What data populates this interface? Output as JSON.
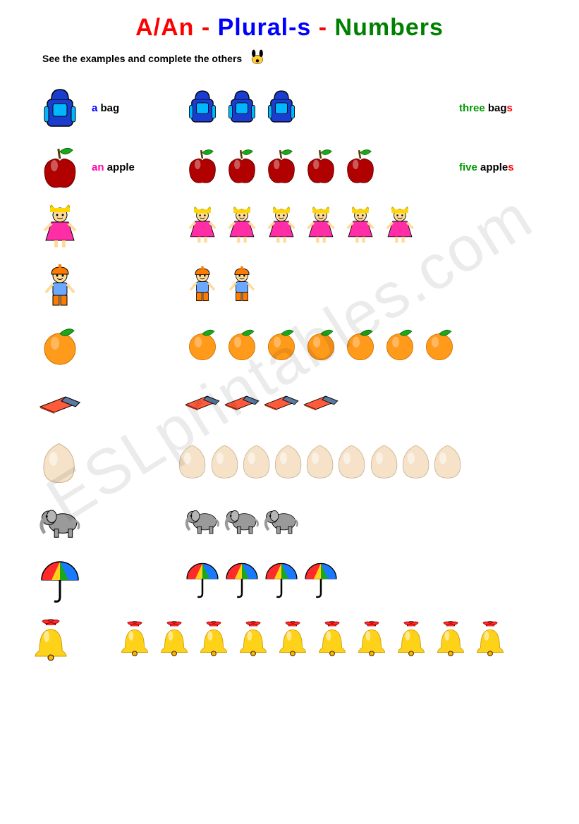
{
  "title": {
    "part1": "A/An",
    "sep": " - ",
    "part2": "Plural-s",
    "part3": "Numbers"
  },
  "subtitle": "See the examples and complete the others",
  "watermark": "ESLprintables.com",
  "rows": [
    {
      "icon": "bag",
      "single_article": "a",
      "single_article_color": "#0000ff",
      "single_noun": "bag",
      "count": 3,
      "answer_number": "three",
      "answer_number_color": "#009900",
      "answer_noun": "bag",
      "answer_suffix": "s",
      "answer_suffix_color": "#ff0000",
      "show_answer": true
    },
    {
      "icon": "apple",
      "single_article": "an",
      "single_article_color": "#ff00aa",
      "single_noun": "apple",
      "count": 5,
      "answer_number": "five",
      "answer_number_color": "#009900",
      "answer_noun": "apple",
      "answer_suffix": "s",
      "answer_suffix_color": "#ff0000",
      "show_answer": true
    },
    {
      "icon": "girl",
      "count": 6,
      "show_answer": false
    },
    {
      "icon": "boy",
      "count": 2,
      "show_answer": false
    },
    {
      "icon": "orange",
      "count": 7,
      "show_answer": false
    },
    {
      "icon": "eraser",
      "count": 4,
      "show_answer": false
    },
    {
      "icon": "egg",
      "count": 9,
      "show_answer": false
    },
    {
      "icon": "elephant",
      "count": 3,
      "show_answer": false
    },
    {
      "icon": "umbrella",
      "count": 4,
      "show_answer": false
    },
    {
      "icon": "bell",
      "count": 10,
      "show_answer": false
    }
  ],
  "icon_sizes": {
    "single": 64,
    "plural": 54
  }
}
